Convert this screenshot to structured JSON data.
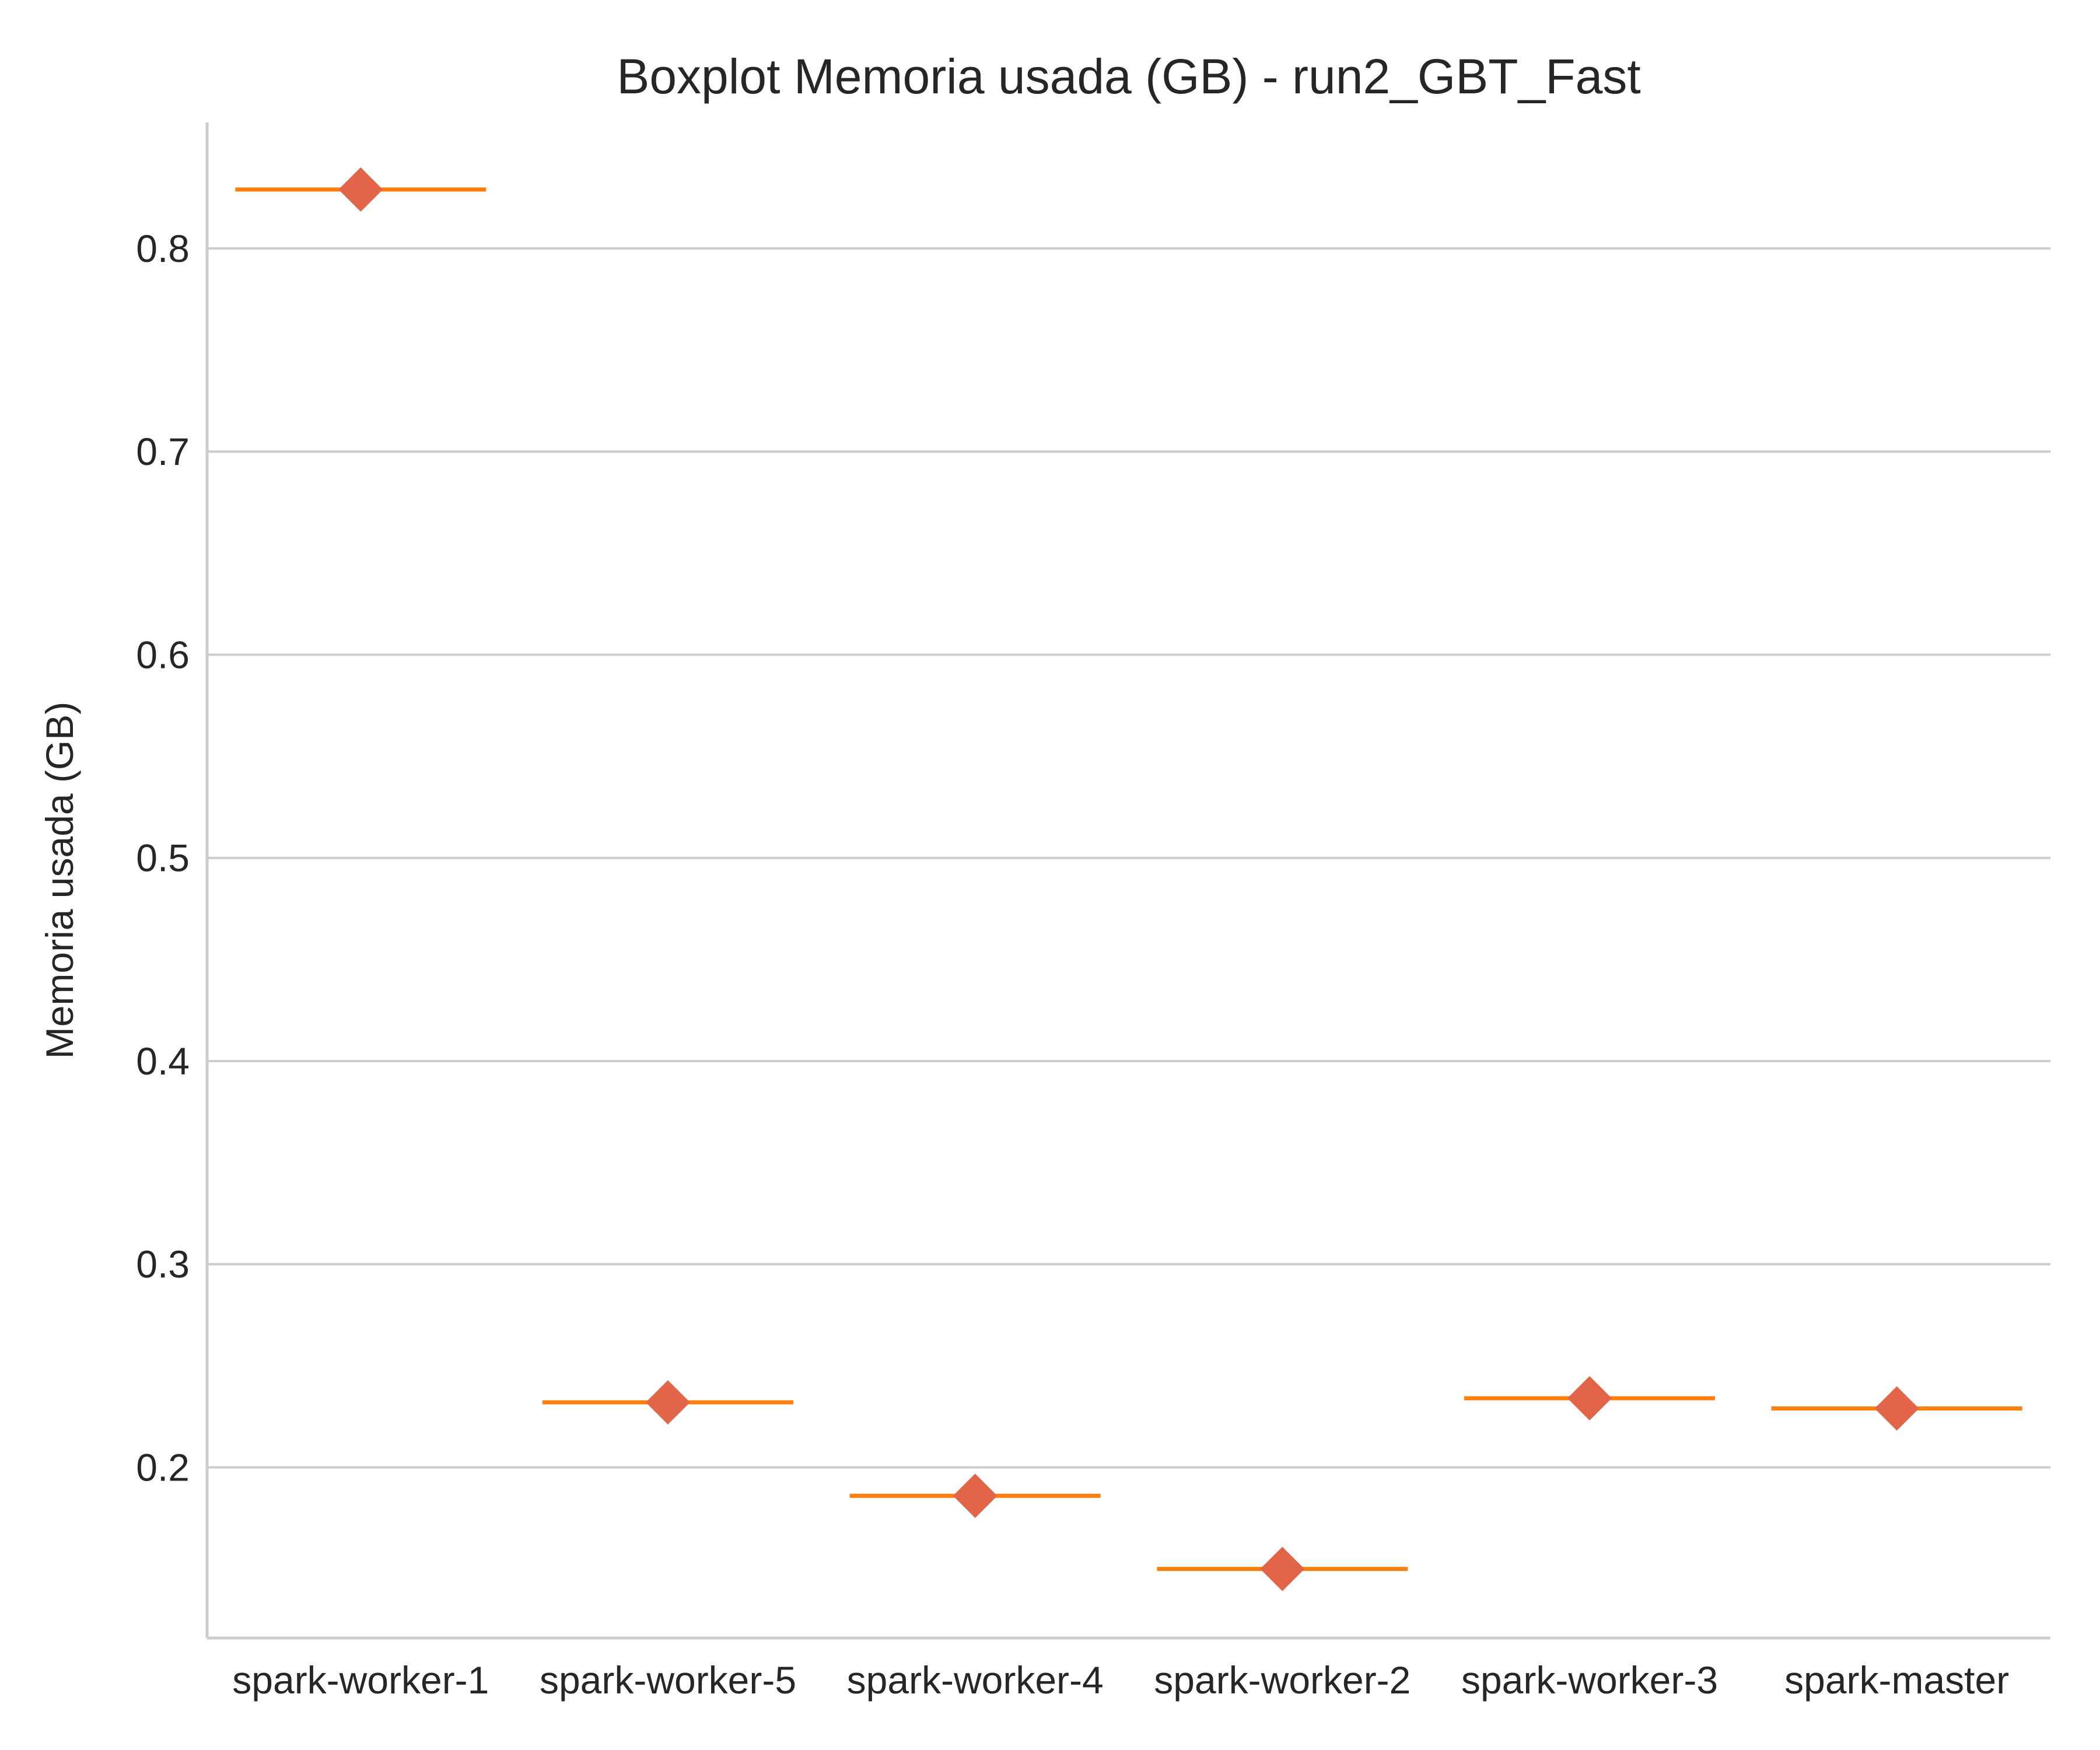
{
  "chart_data": {
    "type": "boxplot",
    "title": "Boxplot Memoria usada (GB) - run2_GBT_Fast",
    "xlabel": "",
    "ylabel": "Memoria usada (GB)",
    "categories": [
      "spark-worker-1",
      "spark-worker-5",
      "spark-worker-4",
      "spark-worker-2",
      "spark-worker-3",
      "spark-master"
    ],
    "medians": [
      0.829,
      0.232,
      0.186,
      0.15,
      0.234,
      0.229
    ],
    "means": [
      0.829,
      0.232,
      0.186,
      0.15,
      0.234,
      0.229
    ],
    "ylim": [
      0.116,
      0.862
    ],
    "yticks": [
      0.2,
      0.3,
      0.4,
      0.5,
      0.6,
      0.7,
      0.8
    ],
    "ytick_labels": [
      "0.2",
      "0.3",
      "0.4",
      "0.5",
      "0.6",
      "0.7",
      "0.8"
    ],
    "grid": "y",
    "colors": {
      "median": "#ff7f0e",
      "mean_marker": "#e2654a",
      "grid": "#cccccc",
      "text": "#262626"
    }
  }
}
